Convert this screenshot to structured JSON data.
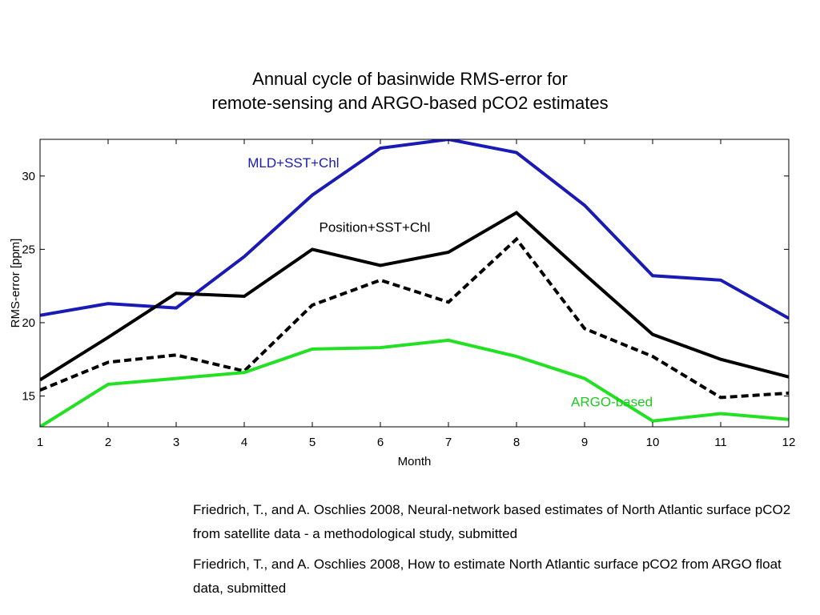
{
  "titles": {
    "line1": "Annual cycle of basinwide RMS-error for",
    "line2": "remote-sensing and ARGO-based pCO2 estimates"
  },
  "chart_data": {
    "type": "line",
    "title": "Annual cycle of basinwide RMS-error for remote-sensing and ARGO-based pCO2 estimates",
    "xlabel": "Month",
    "ylabel": "RMS-error [ppm]",
    "xlim": [
      1,
      12
    ],
    "ylim": [
      12.9,
      32.5
    ],
    "xticks": [
      1,
      2,
      3,
      4,
      5,
      6,
      7,
      8,
      9,
      10,
      11,
      12
    ],
    "yticks": [
      15,
      20,
      25,
      30
    ],
    "grid": false,
    "x": [
      1,
      2,
      3,
      4,
      5,
      6,
      7,
      8,
      9,
      10,
      11,
      12
    ],
    "series": [
      {
        "name": "MLD+SST+Chl",
        "color": "#1a1ab4",
        "style": "solid",
        "values": [
          20.5,
          21.3,
          21.0,
          24.5,
          28.7,
          31.9,
          32.5,
          31.6,
          28.0,
          23.2,
          22.9,
          20.3
        ]
      },
      {
        "name": "Position+SST+Chl",
        "color": "#000000",
        "style": "solid",
        "values": [
          16.1,
          19.0,
          22.0,
          21.8,
          25.0,
          23.9,
          24.8,
          27.5,
          23.3,
          19.2,
          17.5,
          16.3
        ]
      },
      {
        "name": "",
        "color": "#000000",
        "style": "dashed",
        "values": [
          15.4,
          17.3,
          17.8,
          16.7,
          21.2,
          22.9,
          21.4,
          25.7,
          19.6,
          17.7,
          14.9,
          15.2
        ]
      },
      {
        "name": "ARGO-based",
        "color": "#22e022",
        "style": "solid",
        "values": [
          12.9,
          15.8,
          16.2,
          16.6,
          18.2,
          18.3,
          18.8,
          17.7,
          16.2,
          13.3,
          13.8,
          13.4
        ]
      }
    ],
    "annotations": [
      {
        "text": "MLD+SST+Chl",
        "color": "#1a1ab4",
        "x": 4.05,
        "y": 30.6
      },
      {
        "text": "Position+SST+Chl",
        "color": "#000000",
        "x": 5.1,
        "y": 26.2
      },
      {
        "text": "ARGO-based",
        "color": "#22c822",
        "x": 8.8,
        "y": 14.3
      }
    ]
  },
  "references": [
    "Friedrich, T., and A. Oschlies 2008, Neural-network based estimates of North Atlantic surface pCO2 from satellite data - a methodological study, submitted",
    "Friedrich, T., and A. Oschlies 2008, How to estimate North Atlantic surface pCO2 from ARGO float data, submitted"
  ]
}
